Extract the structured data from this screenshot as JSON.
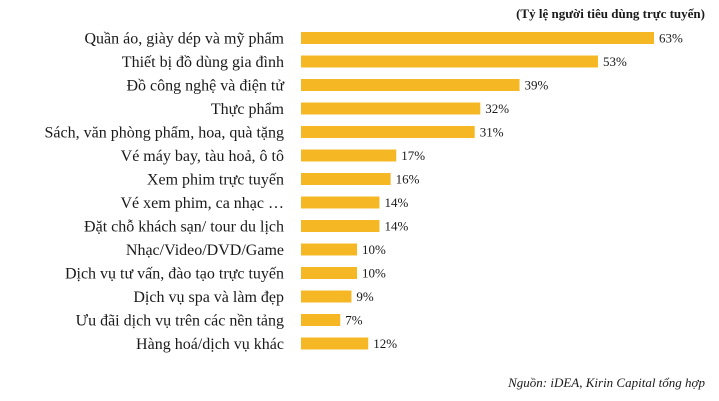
{
  "chart_data": {
    "type": "bar",
    "orientation": "horizontal",
    "unit_note": "(Tỷ lệ người tiêu dùng trực tuyến)",
    "source": "Nguồn: iDEA, Kirin Capital tổng hợp",
    "categories": [
      "Quần áo, giày dép và mỹ phẩm",
      "Thiết bị đồ dùng gia đình",
      "Đồ công nghệ và điện tử",
      "Thực phẩm",
      "Sách, văn phòng phẩm, hoa, quà tặng",
      "Vé máy bay, tàu hoả, ô tô",
      "Xem phim trực tuyến",
      "Vé xem phim, ca nhạc …",
      "Đặt chỗ khách sạn/ tour du lịch",
      "Nhạc/Video/DVD/Game",
      "Dịch vụ tư vấn, đào tạo trực tuyến",
      "Dịch vụ spa và làm đẹp",
      "Ưu đãi dịch vụ trên các nền tảng",
      "Hàng hoá/dịch vụ khác"
    ],
    "values": [
      63,
      53,
      39,
      32,
      31,
      17,
      16,
      14,
      14,
      10,
      10,
      9,
      7,
      12
    ],
    "value_labels": [
      "63%",
      "53%",
      "39%",
      "32%",
      "31%",
      "17%",
      "16%",
      "14%",
      "14%",
      "10%",
      "10%",
      "9%",
      "7%",
      "12%"
    ],
    "bar_color": "#F5B824",
    "xlim": [
      0,
      63
    ],
    "grid": false,
    "legend": "none"
  }
}
